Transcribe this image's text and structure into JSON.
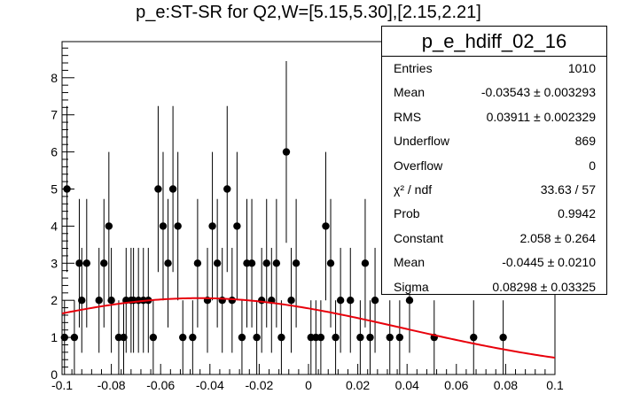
{
  "title": "p_e:ST-SR for Q2,W=[5.15,5.30],[2.15,2.21]",
  "stats_box": {
    "name": "p_e_hdiff_02_16",
    "rows": [
      {
        "label": "Entries",
        "value": "1010"
      },
      {
        "label": "Mean",
        "value": "-0.03543 ± 0.003293"
      },
      {
        "label": "RMS",
        "value": "0.03911 ± 0.002329"
      },
      {
        "label": "Underflow",
        "value": "869"
      },
      {
        "label": "Overflow",
        "value": "0"
      },
      {
        "label": "χ² / ndf",
        "value": "33.63 / 57"
      },
      {
        "label": "Prob",
        "value": "0.9942"
      },
      {
        "label": "Constant",
        "value": "2.058 ± 0.264"
      },
      {
        "label": "Mean",
        "value": "-0.0445 ± 0.0210"
      },
      {
        "label": "Sigma",
        "value": "0.08298 ± 0.03325"
      }
    ]
  },
  "chart_data": {
    "type": "scatter",
    "title": "p_e:ST-SR for Q2,W=[5.15,5.30],[2.15,2.21]",
    "xlabel": "",
    "ylabel": "",
    "xlim": [
      -0.1,
      0.1
    ],
    "ylim": [
      0,
      9
    ],
    "x_ticks": [
      "-0.1",
      "-0.08",
      "-0.06",
      "-0.04",
      "-0.02",
      "0",
      "0.02",
      "0.04",
      "0.06",
      "0.08",
      "0.1"
    ],
    "y_ticks": [
      "0",
      "1",
      "2",
      "3",
      "4",
      "5",
      "6",
      "7",
      "8"
    ],
    "grid": false,
    "marker_color": "#000000",
    "fit_color": "#e8000b",
    "points": [
      {
        "x": -0.099,
        "y": 1
      },
      {
        "x": -0.098,
        "y": 5
      },
      {
        "x": -0.095,
        "y": 1
      },
      {
        "x": -0.093,
        "y": 3
      },
      {
        "x": -0.092,
        "y": 2
      },
      {
        "x": -0.09,
        "y": 3
      },
      {
        "x": -0.085,
        "y": 2
      },
      {
        "x": -0.083,
        "y": 3
      },
      {
        "x": -0.081,
        "y": 4
      },
      {
        "x": -0.08,
        "y": 2
      },
      {
        "x": -0.077,
        "y": 1
      },
      {
        "x": -0.075,
        "y": 1
      },
      {
        "x": -0.074,
        "y": 2
      },
      {
        "x": -0.072,
        "y": 2
      },
      {
        "x": -0.071,
        "y": 2
      },
      {
        "x": -0.069,
        "y": 2
      },
      {
        "x": -0.067,
        "y": 2
      },
      {
        "x": -0.065,
        "y": 2
      },
      {
        "x": -0.063,
        "y": 1
      },
      {
        "x": -0.061,
        "y": 5
      },
      {
        "x": -0.059,
        "y": 4
      },
      {
        "x": -0.057,
        "y": 3
      },
      {
        "x": -0.055,
        "y": 5
      },
      {
        "x": -0.053,
        "y": 4
      },
      {
        "x": -0.051,
        "y": 1
      },
      {
        "x": -0.047,
        "y": 1
      },
      {
        "x": -0.045,
        "y": 3
      },
      {
        "x": -0.041,
        "y": 2
      },
      {
        "x": -0.039,
        "y": 4
      },
      {
        "x": -0.037,
        "y": 3
      },
      {
        "x": -0.035,
        "y": 2
      },
      {
        "x": -0.033,
        "y": 5
      },
      {
        "x": -0.031,
        "y": 2
      },
      {
        "x": -0.029,
        "y": 4
      },
      {
        "x": -0.027,
        "y": 1
      },
      {
        "x": -0.025,
        "y": 3
      },
      {
        "x": -0.023,
        "y": 3
      },
      {
        "x": -0.021,
        "y": 1
      },
      {
        "x": -0.019,
        "y": 2
      },
      {
        "x": -0.017,
        "y": 3
      },
      {
        "x": -0.015,
        "y": 2
      },
      {
        "x": -0.013,
        "y": 3
      },
      {
        "x": -0.011,
        "y": 1
      },
      {
        "x": -0.009,
        "y": 6
      },
      {
        "x": -0.007,
        "y": 2
      },
      {
        "x": -0.005,
        "y": 3
      },
      {
        "x": 0.001,
        "y": 1
      },
      {
        "x": 0.003,
        "y": 1
      },
      {
        "x": 0.005,
        "y": 1
      },
      {
        "x": 0.007,
        "y": 4
      },
      {
        "x": 0.009,
        "y": 3
      },
      {
        "x": 0.011,
        "y": 1
      },
      {
        "x": 0.013,
        "y": 2
      },
      {
        "x": 0.017,
        "y": 2
      },
      {
        "x": 0.021,
        "y": 1
      },
      {
        "x": 0.023,
        "y": 3
      },
      {
        "x": 0.025,
        "y": 1
      },
      {
        "x": 0.027,
        "y": 2
      },
      {
        "x": 0.033,
        "y": 1
      },
      {
        "x": 0.037,
        "y": 1
      },
      {
        "x": 0.041,
        "y": 2
      },
      {
        "x": 0.051,
        "y": 1
      },
      {
        "x": 0.067,
        "y": 1
      },
      {
        "x": 0.079,
        "y": 1
      }
    ],
    "fit": {
      "function": "gaus",
      "constant": 2.058,
      "mean": -0.0445,
      "sigma": 0.08298
    }
  }
}
